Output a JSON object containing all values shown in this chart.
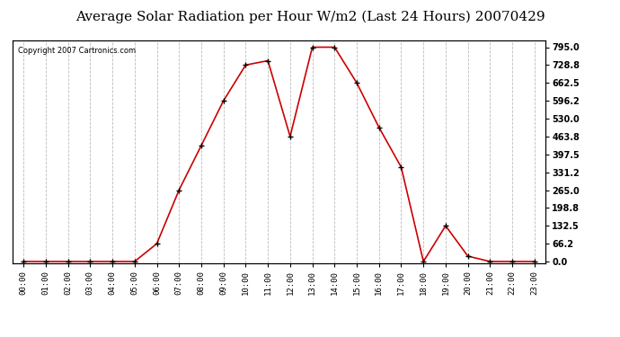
{
  "title": "Average Solar Radiation per Hour W/m2 (Last 24 Hours) 20070429",
  "copyright_text": "Copyright 2007 Cartronics.com",
  "hours": [
    "00:00",
    "01:00",
    "02:00",
    "03:00",
    "04:00",
    "05:00",
    "06:00",
    "07:00",
    "08:00",
    "09:00",
    "10:00",
    "11:00",
    "12:00",
    "13:00",
    "14:00",
    "15:00",
    "16:00",
    "17:00",
    "18:00",
    "19:00",
    "20:00",
    "21:00",
    "22:00",
    "23:00"
  ],
  "values": [
    0.0,
    0.0,
    0.0,
    0.0,
    0.0,
    0.0,
    66.2,
    265.0,
    430.0,
    596.2,
    728.8,
    745.0,
    463.8,
    795.0,
    795.0,
    662.5,
    497.5,
    350.0,
    0.0,
    132.5,
    20.0,
    0.0,
    0.0,
    0.0
  ],
  "line_color": "#cc0000",
  "marker_color": "#000000",
  "bg_color": "#ffffff",
  "grid_color": "#bbbbbb",
  "title_fontsize": 11,
  "ylabel_right_ticks": [
    0.0,
    66.2,
    132.5,
    198.8,
    265.0,
    331.2,
    397.5,
    463.8,
    530.0,
    596.2,
    662.5,
    728.8,
    795.0
  ],
  "ylim": [
    -5.0,
    820.0
  ],
  "fig_width": 6.9,
  "fig_height": 3.75,
  "dpi": 100
}
